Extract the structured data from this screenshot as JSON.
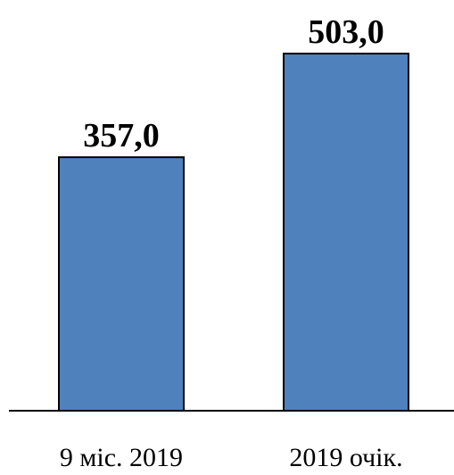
{
  "chart_data": {
    "type": "bar",
    "title": "",
    "xlabel": "",
    "ylabel": "",
    "categories": [
      "9 міс. 2019",
      "2019 очік."
    ],
    "values": [
      357.0,
      503.0
    ],
    "value_labels": [
      "357,0",
      "503,0"
    ],
    "ylim": [
      0,
      503
    ],
    "grid": false,
    "legend": "none",
    "bar_color": "#4f81bd"
  }
}
